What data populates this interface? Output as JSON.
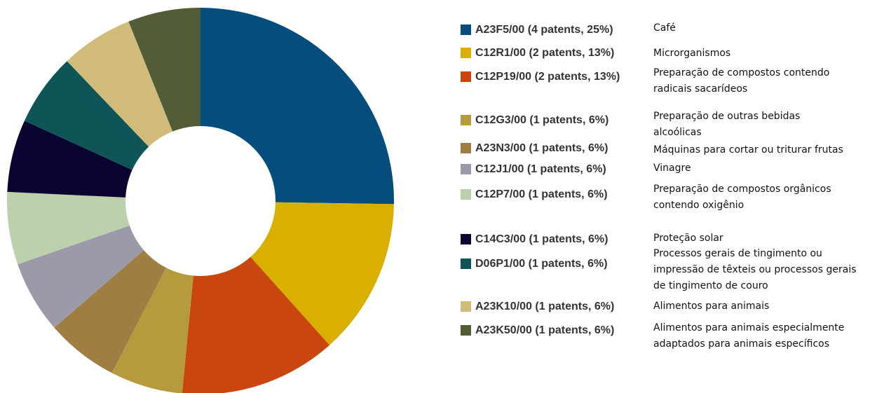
{
  "chart_data": {
    "type": "donut",
    "categories": [
      "A23F5/00 (4 patents, 25%)",
      "C12R1/00 (2 patents, 13%)",
      "C12P19/00 (2 patents, 13%)",
      "C12G3/00 (1 patents, 6%)",
      "A23N3/00 (1 patents, 6%)",
      "C12J1/00 (1 patents, 6%)",
      "C12P7/00 (1 patents, 6%)",
      "C14C3/00 (1 patents, 6%)",
      "D06P1/00 (1 patents, 6%)",
      "A23K10/00 (1 patents, 6%)",
      "A23K50/00 (1 patents, 6%)"
    ],
    "values": [
      25,
      13,
      13,
      6,
      6,
      6,
      6,
      6,
      6,
      6,
      6
    ],
    "colors": [
      "#054d7d",
      "#d9b000",
      "#c9460e",
      "#b59a3e",
      "#a07d42",
      "#9b9aa8",
      "#bdd0ac",
      "#0a0530",
      "#0f5557",
      "#d0bb7a",
      "#525d37"
    ],
    "descriptions": [
      [
        "Café"
      ],
      [
        "Microrganismos"
      ],
      [
        "Preparação de compostos contendo",
        "radicais sacarídeos"
      ],
      [
        "Preparação de outras bebidas",
        "alcoólicas"
      ],
      [
        "Máquinas para cortar ou triturar frutas"
      ],
      [
        "Vinagre"
      ],
      [
        "Preparação de compostos orgânicos",
        "contendo oxigênio"
      ],
      [
        "Proteção solar"
      ],
      [
        "Processos gerais de tingimento ou",
        "impressão de têxteis ou processos gerais",
        "de tingimento de couro"
      ],
      [
        "Alimentos para animais"
      ],
      [
        "Alimentos para animais especialmente",
        "adaptados para animais específicos"
      ]
    ]
  }
}
